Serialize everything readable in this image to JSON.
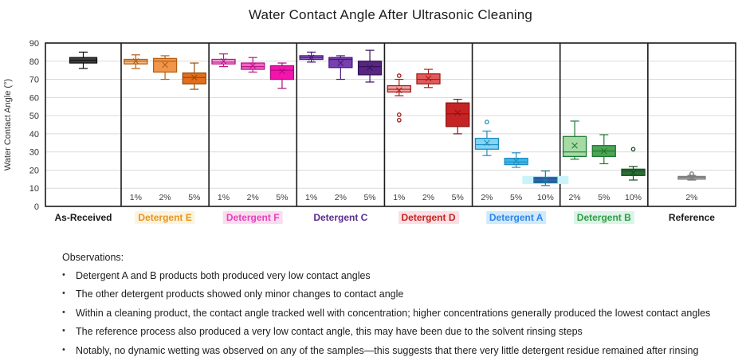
{
  "chart_data": {
    "type": "box",
    "title": "Water Contact Angle After Ultrasonic Cleaning",
    "ylabel": "Water Contact Angle (°)",
    "ylim": [
      0,
      90
    ],
    "ytick_step": 10,
    "grid": true,
    "grid_color": "#dadada",
    "frame_color": "#1a1a1a",
    "groups": [
      {
        "label": "As-Received",
        "label_color": "#1a1a1a",
        "label_bg": "",
        "series": [
          {
            "conc": "",
            "fill": "#3f3f3f",
            "edge": "#111111",
            "whisker_lo": 76,
            "q1": 79,
            "median": 80.5,
            "q3": 82,
            "whisker_hi": 85,
            "mean": null,
            "outliers": []
          }
        ]
      },
      {
        "label": "Detergent E",
        "label_color": "#E7941E",
        "label_bg": "#FCF3DD",
        "series": [
          {
            "conc": "1%",
            "fill": "#F5BD87",
            "edge": "#B75E11",
            "whisker_lo": 76,
            "q1": 78.5,
            "median": 80,
            "q3": 81,
            "whisker_hi": 83.5,
            "mean": 80,
            "outliers": []
          },
          {
            "conc": "2%",
            "fill": "#F0964B",
            "edge": "#B75E11",
            "whisker_lo": 70,
            "q1": 74,
            "median": 80,
            "q3": 81.5,
            "whisker_hi": 83,
            "mean": 78,
            "outliers": []
          },
          {
            "conc": "5%",
            "fill": "#E26E1B",
            "edge": "#9A4D0B",
            "whisker_lo": 64.5,
            "q1": 67.5,
            "median": 71,
            "q3": 73.5,
            "whisker_hi": 79,
            "mean": 71,
            "outliers": []
          }
        ]
      },
      {
        "label": "Detergent F",
        "label_color": "#E740BB",
        "label_bg": "#FADCEF",
        "series": [
          {
            "conc": "1%",
            "fill": "#F8A6DA",
            "edge": "#BC1489",
            "whisker_lo": 77,
            "q1": 78.5,
            "median": 79.5,
            "q3": 81,
            "whisker_hi": 84,
            "mean": 80,
            "outliers": []
          },
          {
            "conc": "2%",
            "fill": "#F265C6",
            "edge": "#BC1489",
            "whisker_lo": 74,
            "q1": 75.5,
            "median": 77,
            "q3": 79,
            "whisker_hi": 82,
            "mean": 77.5,
            "outliers": []
          },
          {
            "conc": "5%",
            "fill": "#F513AE",
            "edge": "#A80C7C",
            "whisker_lo": 65,
            "q1": 70,
            "median": 75,
            "q3": 77.5,
            "whisker_hi": 79,
            "mean": 74.5,
            "outliers": []
          }
        ]
      },
      {
        "label": "Detergent C",
        "label_color": "#5A2D90",
        "label_bg": "",
        "series": [
          {
            "conc": "1%",
            "fill": "#9B6AC6",
            "edge": "#45197A",
            "whisker_lo": 79.5,
            "q1": 81,
            "median": 82,
            "q3": 83,
            "whisker_hi": 85,
            "mean": 82,
            "outliers": []
          },
          {
            "conc": "2%",
            "fill": "#7840AE",
            "edge": "#45197A",
            "whisker_lo": 70,
            "q1": 76.5,
            "median": 81,
            "q3": 82,
            "whisker_hi": 83,
            "mean": 79,
            "outliers": []
          },
          {
            "conc": "5%",
            "fill": "#57267F",
            "edge": "#381060",
            "whisker_lo": 68.5,
            "q1": 72.5,
            "median": 77,
            "q3": 80,
            "whisker_hi": 86,
            "mean": 76.5,
            "outliers": []
          }
        ]
      },
      {
        "label": "Detergent D",
        "label_color": "#C1271D",
        "label_bg": "#FBDEE6",
        "series": [
          {
            "conc": "1%",
            "fill": "#F2A3A3",
            "edge": "#A61B1B",
            "whisker_lo": 61,
            "q1": 63,
            "median": 64.5,
            "q3": 66.5,
            "whisker_hi": 70,
            "mean": 64,
            "outliers": [
              72,
              50.5,
              47.5
            ]
          },
          {
            "conc": "2%",
            "fill": "#E25B5B",
            "edge": "#A61B1B",
            "whisker_lo": 65.5,
            "q1": 67.5,
            "median": 70,
            "q3": 73,
            "whisker_hi": 75.5,
            "mean": 70.5,
            "outliers": []
          },
          {
            "conc": "5%",
            "fill": "#C62424",
            "edge": "#8E1414",
            "whisker_lo": 40,
            "q1": 44,
            "median": 51,
            "q3": 57,
            "whisker_hi": 59,
            "mean": 51.5,
            "outliers": []
          }
        ]
      },
      {
        "label": "Detergent A",
        "label_color": "#2E86E9",
        "label_bg": "#D0E9FB",
        "series": [
          {
            "conc": "2%",
            "fill": "#83D5F3",
            "edge": "#1F8DC2",
            "whisker_lo": 28,
            "q1": 31.5,
            "median": 34,
            "q3": 37.5,
            "whisker_hi": 41.5,
            "mean": 35,
            "outliers": [
              46.5
            ]
          },
          {
            "conc": "5%",
            "fill": "#3EB8E9",
            "edge": "#1F8DC2",
            "whisker_lo": 21.5,
            "q1": 23,
            "median": 24.5,
            "q3": 26.5,
            "whisker_hi": 29.5,
            "mean": 25,
            "outliers": []
          },
          {
            "conc": "10%",
            "fill": "#3A4BA2",
            "edge": "#1C7FA3",
            "whisker_lo": 11.5,
            "q1": 13,
            "median": 14.5,
            "q3": 16,
            "whisker_hi": 19.5,
            "mean": 14.5,
            "outliers": [],
            "band": {
              "lo": 12.3,
              "hi": 16.8,
              "color": "#C9F3F9"
            }
          }
        ]
      },
      {
        "label": "Detergent B",
        "label_color": "#2E9E41",
        "label_bg": "#DCF3E9",
        "series": [
          {
            "conc": "2%",
            "fill": "#A6DBA6",
            "edge": "#1F7A33",
            "whisker_lo": 26,
            "q1": 27.5,
            "median": 30,
            "q3": 38.5,
            "whisker_hi": 47,
            "mean": 33.5,
            "outliers": []
          },
          {
            "conc": "5%",
            "fill": "#4DA453",
            "edge": "#1F7A33",
            "whisker_lo": 23.5,
            "q1": 27.5,
            "median": 30.5,
            "q3": 33.5,
            "whisker_hi": 39.5,
            "mean": 30.5,
            "outliers": []
          },
          {
            "conc": "10%",
            "fill": "#2C6F35",
            "edge": "#174F21",
            "whisker_lo": 14.5,
            "q1": 17,
            "median": 19.5,
            "q3": 20.5,
            "whisker_hi": 22,
            "mean": 18.5,
            "outliers": [
              31.5
            ]
          }
        ]
      },
      {
        "label": "Reference",
        "label_color": "#1a1a1a",
        "label_bg": "",
        "series": [
          {
            "conc": "2%",
            "fill": "#ACACAC",
            "edge": "#7C7C7C",
            "whisker_lo": 14.5,
            "q1": 15,
            "median": 16,
            "q3": 16.5,
            "whisker_hi": 17,
            "mean": 16,
            "outliers": [
              18
            ]
          }
        ]
      }
    ]
  },
  "observations": {
    "title": "Observations:",
    "bullet": "•",
    "items": [
      "Detergent A and B products both produced very low contact angles",
      "The other detergent products showed only minor changes to contact angle",
      "Within a cleaning product, the contact angle tracked well with concentration; higher concentrations generally produced the lowest contact angles",
      "The reference process also produced a very low contact angle, this may have been due to the solvent rinsing steps",
      "Notably, no dynamic wetting was observed on any of the samples—this suggests that there very little detergent residue remained after rinsing"
    ]
  }
}
